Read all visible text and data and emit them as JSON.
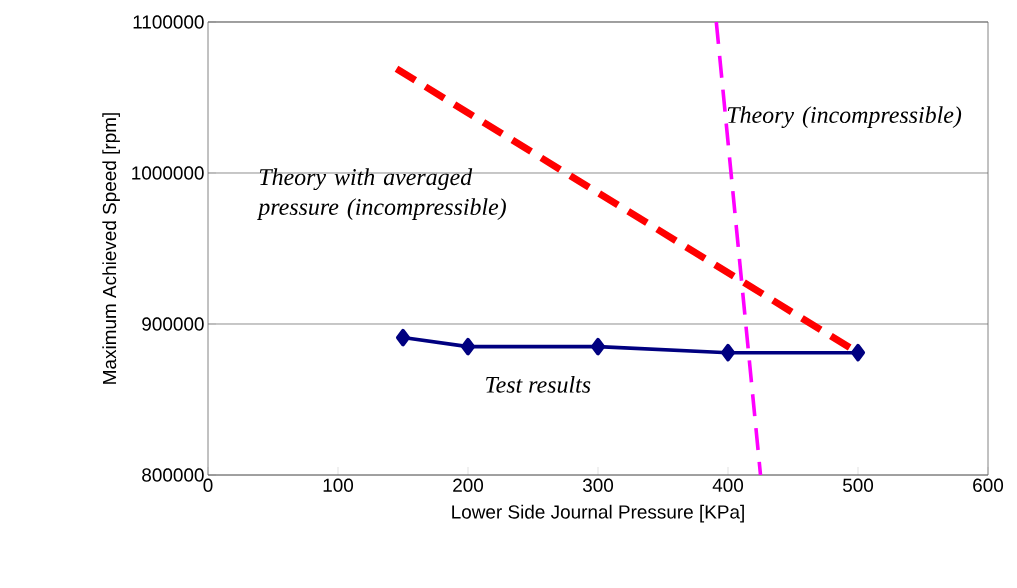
{
  "chart_data": {
    "type": "line",
    "xlabel": "Lower Side Journal Pressure [KPa]",
    "ylabel": "Maximum Achieved Speed [rpm]",
    "xlim": [
      0,
      600
    ],
    "xticks": [
      0,
      100,
      200,
      300,
      400,
      500,
      600
    ],
    "ylim": [
      800000,
      1100000
    ],
    "yticks": [
      800000,
      900000,
      1000000,
      1100000
    ],
    "grid": "y",
    "legend": false,
    "series": [
      {
        "name": "Test results",
        "color": "#000080",
        "marker": "diamond",
        "line_style": "solid",
        "x": [
          150,
          200,
          300,
          400,
          500
        ],
        "values": [
          891000,
          885000,
          885000,
          881000,
          881000
        ]
      },
      {
        "name": "Theory with averaged pressure (incompressible)",
        "color": "#ff0000",
        "marker": "none",
        "line_style": "dashed",
        "x": [
          145,
          500
        ],
        "values": [
          1069000,
          881000
        ]
      },
      {
        "name": "Theory (incompressible)",
        "color": "#ff00ff",
        "marker": "none",
        "line_style": "dashed",
        "x": [
          391,
          425
        ],
        "values": [
          1100000,
          800000
        ]
      }
    ]
  }
}
